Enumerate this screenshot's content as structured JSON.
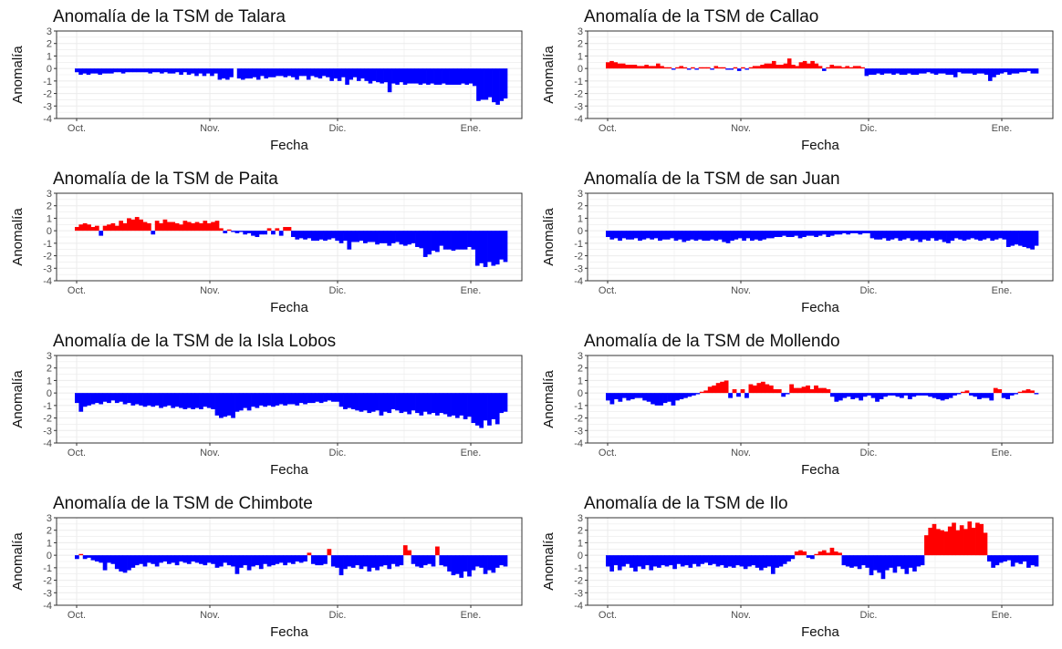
{
  "colors": {
    "positive": "#ff0000",
    "negative": "#0000ff",
    "panel_border": "#333333",
    "grid": "#ebebeb",
    "background": "#ffffff"
  },
  "chart_data": [
    {
      "type": "bar",
      "title": "Anomalía de la TSM de Talara",
      "xlabel": "Fecha",
      "ylabel": "Anomalía",
      "ylim": [
        -4,
        3
      ],
      "x_ticks": [
        "Oct.",
        "Nov.",
        "Dic.",
        "Ene."
      ],
      "y_ticks": [
        "3",
        "2",
        "1",
        "0",
        "-1",
        "-2",
        "-3",
        "-4"
      ],
      "grid": true,
      "values": [
        -0.3,
        -0.5,
        -0.4,
        -0.5,
        -0.4,
        -0.4,
        -0.5,
        -0.4,
        -0.4,
        -0.4,
        -0.3,
        -0.3,
        -0.4,
        -0.3,
        -0.3,
        -0.3,
        -0.3,
        -0.3,
        -0.3,
        -0.4,
        -0.3,
        -0.3,
        -0.4,
        -0.3,
        -0.4,
        -0.4,
        -0.3,
        -0.5,
        -0.3,
        -0.5,
        -0.4,
        -0.6,
        -0.4,
        -0.6,
        -0.4,
        -0.6,
        -0.4,
        -0.9,
        -0.8,
        -0.9,
        -0.7,
        0,
        -0.8,
        -0.9,
        -0.8,
        -0.8,
        -0.7,
        -0.9,
        -0.6,
        -0.8,
        -0.7,
        -0.7,
        -0.6,
        -0.6,
        -0.7,
        -0.6,
        -0.7,
        -0.9,
        -0.6,
        -0.6,
        -0.9,
        -0.6,
        -0.7,
        -0.8,
        -0.6,
        -0.7,
        -1.0,
        -0.8,
        -1.0,
        -0.7,
        -1.3,
        -0.9,
        -0.7,
        -1.0,
        -0.8,
        -1.0,
        -1.2,
        -1.0,
        -1.1,
        -1.2,
        -1.1,
        -1.9,
        -1.2,
        -1.3,
        -1.1,
        -1.3,
        -1.2,
        -1.2,
        -1.2,
        -1.3,
        -1.2,
        -1.3,
        -1.2,
        -1.3,
        -1.3,
        -1.2,
        -1.3,
        -1.3,
        -1.3,
        -1.3,
        -1.2,
        -1.3,
        -1.2,
        -1.4,
        -2.6,
        -2.5,
        -2.5,
        -2.3,
        -2.7,
        -2.9,
        -2.6,
        -2.4
      ]
    },
    {
      "type": "bar",
      "title": "Anomalía de la TSM de Callao",
      "xlabel": "Fecha",
      "ylabel": "Anomalía",
      "ylim": [
        -4,
        3
      ],
      "x_ticks": [
        "Oct.",
        "Nov.",
        "Dic.",
        "Ene."
      ],
      "y_ticks": [
        "3",
        "2",
        "1",
        "0",
        "-1",
        "-2",
        "-3",
        "-4"
      ],
      "grid": true,
      "values": [
        0.5,
        0.6,
        0.5,
        0.4,
        0.4,
        0.3,
        0.3,
        0.3,
        0.2,
        0.2,
        0.3,
        0.2,
        0.2,
        0.4,
        0.2,
        0.1,
        0.1,
        -0.1,
        0.1,
        0.2,
        0.1,
        -0.1,
        0.1,
        -0.1,
        0.1,
        0.1,
        0.1,
        -0.1,
        0.2,
        0.1,
        0.1,
        -0.1,
        -0.1,
        0.1,
        -0.2,
        0.1,
        -0.1,
        0.1,
        0.2,
        0.2,
        0.3,
        0.4,
        0.4,
        0.6,
        0.3,
        0.3,
        0.4,
        0.8,
        0.3,
        0.2,
        0.5,
        0.6,
        0.4,
        0.6,
        0.4,
        0.2,
        -0.2,
        0.1,
        0.3,
        0.2,
        0.2,
        0.1,
        0.2,
        0.1,
        0.2,
        0.2,
        0.1,
        -0.6,
        -0.5,
        -0.5,
        -0.4,
        -0.5,
        -0.4,
        -0.4,
        -0.5,
        -0.4,
        -0.5,
        -0.5,
        -0.4,
        -0.5,
        -0.5,
        -0.4,
        -0.4,
        -0.3,
        -0.4,
        -0.5,
        -0.4,
        -0.4,
        -0.5,
        -0.5,
        -0.7,
        -0.3,
        -0.4,
        -0.4,
        -0.4,
        -0.5,
        -0.4,
        -0.4,
        -0.5,
        -1.0,
        -0.7,
        -0.5,
        -0.4,
        -0.3,
        -0.5,
        -0.4,
        -0.4,
        -0.3,
        -0.3,
        -0.2,
        -0.4,
        -0.4
      ]
    },
    {
      "type": "bar",
      "title": "Anomalía de la TSM de Paita",
      "xlabel": "Fecha",
      "ylabel": "Anomalía",
      "ylim": [
        -4,
        3
      ],
      "x_ticks": [
        "Oct.",
        "Nov.",
        "Dic.",
        "Ene."
      ],
      "y_ticks": [
        "3",
        "2",
        "1",
        "0",
        "-1",
        "-2",
        "-3",
        "-4"
      ],
      "grid": true,
      "values": [
        0.3,
        0.5,
        0.6,
        0.5,
        0.3,
        0.4,
        -0.4,
        0.4,
        0.5,
        0.6,
        0.4,
        0.8,
        0.6,
        1.0,
        0.9,
        1.1,
        0.9,
        0.7,
        0.6,
        -0.3,
        0.8,
        0.6,
        0.9,
        0.7,
        0.7,
        0.6,
        0.5,
        0.8,
        0.7,
        0.6,
        0.7,
        0.6,
        0.8,
        0.6,
        0.7,
        0.8,
        0.2,
        -0.2,
        0.1,
        -0.1,
        -0.2,
        -0.1,
        -0.3,
        -0.2,
        -0.4,
        -0.5,
        -0.3,
        -0.3,
        0.2,
        -0.3,
        0.2,
        -0.4,
        0.3,
        0.3,
        -0.5,
        -0.7,
        -0.6,
        -0.7,
        -0.6,
        -0.8,
        -0.8,
        -0.7,
        -0.8,
        -0.7,
        -0.6,
        -0.8,
        -1.0,
        -0.8,
        -1.5,
        -0.9,
        -0.9,
        -0.8,
        -1.0,
        -0.9,
        -0.9,
        -1.1,
        -1.0,
        -1.0,
        -1.2,
        -1.0,
        -0.9,
        -1.1,
        -1.2,
        -1.1,
        -1.0,
        -1.3,
        -1.4,
        -2.1,
        -1.9,
        -1.6,
        -1.7,
        -1.2,
        -1.5,
        -1.5,
        -1.6,
        -1.5,
        -1.5,
        -1.5,
        -1.3,
        -1.5,
        -2.8,
        -2.6,
        -2.9,
        -2.5,
        -2.8,
        -2.7,
        -2.3,
        -2.5
      ]
    },
    {
      "type": "bar",
      "title": "Anomalía de la TSM de san Juan",
      "xlabel": "Fecha",
      "ylabel": "Anomalía",
      "ylim": [
        -4,
        3
      ],
      "x_ticks": [
        "Oct.",
        "Nov.",
        "Dic.",
        "Ene."
      ],
      "y_ticks": [
        "3",
        "2",
        "1",
        "0",
        "-1",
        "-2",
        "-3",
        "-4"
      ],
      "grid": true,
      "values": [
        -0.5,
        -0.7,
        -0.6,
        -0.8,
        -0.6,
        -0.7,
        -0.7,
        -0.6,
        -0.8,
        -0.7,
        -0.6,
        -0.7,
        -0.6,
        -0.8,
        -0.7,
        -0.7,
        -0.6,
        -0.8,
        -0.7,
        -0.9,
        -0.8,
        -0.7,
        -0.8,
        -0.7,
        -0.8,
        -0.8,
        -0.7,
        -0.8,
        -0.7,
        -0.9,
        -1.0,
        -0.8,
        -0.7,
        -0.6,
        -0.8,
        -0.6,
        -0.8,
        -0.7,
        -0.8,
        -0.7,
        -0.6,
        -0.6,
        -0.5,
        -0.5,
        -0.4,
        -0.5,
        -0.5,
        -0.4,
        -0.6,
        -0.5,
        -0.4,
        -0.4,
        -0.5,
        -0.4,
        -0.3,
        -0.5,
        -0.4,
        -0.3,
        -0.3,
        -0.2,
        -0.3,
        -0.2,
        -0.2,
        -0.3,
        -0.2,
        -0.2,
        -0.6,
        -0.7,
        -0.7,
        -0.6,
        -0.8,
        -0.7,
        -0.6,
        -0.8,
        -0.7,
        -0.6,
        -0.8,
        -0.7,
        -0.9,
        -0.7,
        -0.8,
        -0.6,
        -0.8,
        -0.7,
        -0.9,
        -1.0,
        -0.8,
        -0.6,
        -0.7,
        -0.8,
        -0.7,
        -0.6,
        -0.7,
        -0.8,
        -0.7,
        -0.6,
        -0.8,
        -0.7,
        -0.6,
        -0.7,
        -1.3,
        -1.2,
        -1.1,
        -1.2,
        -1.3,
        -1.4,
        -1.5,
        -1.2
      ]
    },
    {
      "type": "bar",
      "title": "Anomalía de la TSM de la Isla Lobos",
      "xlabel": "Fecha",
      "ylabel": "Anomalía",
      "ylim": [
        -4,
        3
      ],
      "x_ticks": [
        "Oct.",
        "Nov.",
        "Dic.",
        "Ene."
      ],
      "y_ticks": [
        "3",
        "2",
        "1",
        "0",
        "-1",
        "-2",
        "-3",
        "-4"
      ],
      "grid": true,
      "values": [
        -0.8,
        -1.5,
        -1.1,
        -1.0,
        -0.9,
        -0.8,
        -0.9,
        -0.7,
        -0.8,
        -0.6,
        -0.8,
        -0.7,
        -0.9,
        -0.8,
        -1.0,
        -0.9,
        -1.0,
        -1.1,
        -1.0,
        -1.1,
        -1.0,
        -1.2,
        -1.1,
        -1.0,
        -1.2,
        -1.1,
        -1.2,
        -1.3,
        -1.2,
        -1.3,
        -1.2,
        -1.3,
        -1.1,
        -1.2,
        -1.3,
        -1.8,
        -2.0,
        -1.9,
        -1.8,
        -2.0,
        -1.5,
        -1.4,
        -1.2,
        -1.4,
        -1.1,
        -1.2,
        -1.0,
        -1.1,
        -1.0,
        -1.1,
        -1.0,
        -0.9,
        -1.0,
        -0.9,
        -0.9,
        -1.0,
        -0.8,
        -0.9,
        -0.8,
        -0.8,
        -0.7,
        -0.8,
        -0.7,
        -0.6,
        -0.7,
        -0.7,
        -1.1,
        -1.3,
        -1.2,
        -1.3,
        -1.4,
        -1.5,
        -1.4,
        -1.6,
        -1.5,
        -1.4,
        -1.8,
        -1.5,
        -1.6,
        -1.3,
        -1.4,
        -1.6,
        -1.5,
        -1.7,
        -1.4,
        -1.6,
        -1.8,
        -1.5,
        -1.7,
        -1.6,
        -1.8,
        -1.6,
        -1.7,
        -1.9,
        -1.8,
        -2.0,
        -1.8,
        -2.1,
        -1.9,
        -2.4,
        -2.6,
        -2.8,
        -2.2,
        -2.6,
        -2.1,
        -2.5,
        -1.6,
        -1.5
      ]
    },
    {
      "type": "bar",
      "title": "Anomalía de la TSM de Mollendo",
      "xlabel": "Fecha",
      "ylabel": "Anomalía",
      "ylim": [
        -4,
        3
      ],
      "x_ticks": [
        "Oct.",
        "Nov.",
        "Dic.",
        "Ene."
      ],
      "y_ticks": [
        "3",
        "2",
        "1",
        "0",
        "-1",
        "-2",
        "-3",
        "-4"
      ],
      "grid": true,
      "values": [
        -0.6,
        -0.9,
        -0.5,
        -0.7,
        -0.4,
        -0.6,
        -0.5,
        -0.4,
        -0.4,
        -0.6,
        -0.7,
        -0.9,
        -1.0,
        -1.0,
        -0.8,
        -0.7,
        -1.0,
        -0.6,
        -0.5,
        -0.4,
        -0.3,
        -0.2,
        -0.1,
        0.1,
        0.2,
        0.5,
        0.6,
        0.8,
        0.9,
        1.0,
        -0.4,
        0.3,
        -0.3,
        0.3,
        -0.4,
        0.7,
        0.6,
        0.8,
        0.9,
        0.7,
        0.6,
        0.3,
        0.3,
        -0.3,
        -0.1,
        0.7,
        0.4,
        0.4,
        0.5,
        0.6,
        0.3,
        0.6,
        0.4,
        0.4,
        0.3,
        -0.3,
        -0.7,
        -0.6,
        -0.4,
        -0.3,
        -0.5,
        -0.4,
        -0.6,
        -0.3,
        -0.2,
        -0.4,
        -0.7,
        -0.5,
        -0.3,
        -0.2,
        -0.2,
        -0.3,
        -0.4,
        -0.2,
        -0.5,
        -0.3,
        -0.2,
        -0.2,
        -0.2,
        -0.3,
        -0.4,
        -0.5,
        -0.6,
        -0.5,
        -0.4,
        -0.2,
        -0.1,
        0.1,
        0.2,
        -0.2,
        -0.3,
        -0.5,
        -0.4,
        -0.4,
        -0.6,
        0.4,
        0.3,
        -0.4,
        -0.5,
        -0.2,
        -0.1,
        0.1,
        0.2,
        0.3,
        0.2,
        -0.1
      ]
    },
    {
      "type": "bar",
      "title": "Anomalía de la TSM de Chimbote",
      "xlabel": "Fecha",
      "ylabel": "Anomalía",
      "ylim": [
        -4,
        3
      ],
      "x_ticks": [
        "Oct.",
        "Nov.",
        "Dic.",
        "Ene."
      ],
      "y_ticks": [
        "3",
        "2",
        "1",
        "0",
        "-1",
        "-2",
        "-3",
        "-4"
      ],
      "grid": true,
      "values": [
        -0.3,
        0.1,
        -0.3,
        -0.2,
        -0.4,
        -0.5,
        -0.6,
        -1.2,
        -0.6,
        -0.7,
        -1.1,
        -1.3,
        -1.4,
        -1.2,
        -1.0,
        -0.8,
        -0.7,
        -0.9,
        -0.6,
        -0.7,
        -0.9,
        -0.6,
        -0.5,
        -0.7,
        -0.6,
        -0.8,
        -0.5,
        -0.6,
        -0.7,
        -0.5,
        -0.6,
        -0.7,
        -0.8,
        -0.6,
        -0.7,
        -1.0,
        -0.9,
        -0.6,
        -0.8,
        -0.9,
        -1.5,
        -1.0,
        -0.8,
        -1.2,
        -0.9,
        -0.8,
        -1.1,
        -0.7,
        -0.9,
        -0.8,
        -0.7,
        -0.6,
        -0.8,
        -0.6,
        -0.7,
        -0.5,
        -0.6,
        -0.5,
        0.2,
        -0.7,
        -0.8,
        -0.8,
        -0.7,
        0.5,
        -0.9,
        -1.0,
        -1.6,
        -1.1,
        -0.9,
        -1.0,
        -0.8,
        -1.1,
        -0.9,
        -1.3,
        -1.0,
        -1.2,
        -0.9,
        -0.8,
        -1.1,
        -0.7,
        -0.9,
        -0.8,
        0.8,
        0.4,
        -0.7,
        -0.9,
        -1.0,
        -0.8,
        -0.7,
        -0.9,
        0.7,
        -0.8,
        -0.9,
        -1.3,
        -1.6,
        -1.5,
        -1.8,
        -1.3,
        -1.7,
        -1.2,
        -0.9,
        -1.0,
        -1.5,
        -1.2,
        -1.4,
        -1.0,
        -0.8,
        -0.9
      ]
    },
    {
      "type": "bar",
      "title": "Anomalía de la TSM de Ilo",
      "xlabel": "Fecha",
      "ylabel": "Anomalía",
      "ylim": [
        -4,
        3
      ],
      "x_ticks": [
        "Oct.",
        "Nov.",
        "Dic.",
        "Ene."
      ],
      "y_ticks": [
        "3",
        "2",
        "1",
        "0",
        "-1",
        "-2",
        "-3",
        "-4"
      ],
      "grid": true,
      "values": [
        -0.9,
        -1.3,
        -0.8,
        -1.2,
        -0.9,
        -0.7,
        -1.0,
        -1.3,
        -0.9,
        -1.1,
        -0.8,
        -1.2,
        -0.9,
        -1.0,
        -0.8,
        -0.9,
        -0.8,
        -1.1,
        -0.7,
        -0.9,
        -0.8,
        -1.0,
        -0.7,
        -0.9,
        -0.7,
        -0.6,
        -0.8,
        -0.7,
        -0.9,
        -0.8,
        -1.0,
        -0.9,
        -1.0,
        -0.8,
        -0.9,
        -1.1,
        -0.9,
        -0.8,
        -1.0,
        -1.2,
        -1.0,
        -0.9,
        -1.5,
        -1.0,
        -0.9,
        -0.7,
        -0.5,
        -0.3,
        0.3,
        0.4,
        0.3,
        -0.2,
        -0.3,
        0.1,
        0.3,
        0.4,
        0.2,
        0.6,
        0.3,
        0.2,
        -0.8,
        -0.9,
        -1.0,
        -0.9,
        -1.1,
        -0.8,
        -1.0,
        -1.6,
        -1.2,
        -1.4,
        -1.9,
        -1.2,
        -1.0,
        -1.4,
        -0.9,
        -1.1,
        -1.5,
        -1.0,
        -1.3,
        -0.9,
        -0.8,
        1.6,
        2.2,
        2.5,
        2.1,
        2.0,
        1.9,
        2.3,
        2.6,
        2.0,
        2.4,
        2.1,
        2.7,
        2.2,
        2.6,
        2.5,
        1.8,
        -0.5,
        -1.0,
        -0.8,
        -0.6,
        -0.5,
        -0.4,
        -0.9,
        -0.6,
        -0.7,
        -0.5,
        -1.0,
        -0.8,
        -0.9
      ]
    }
  ]
}
